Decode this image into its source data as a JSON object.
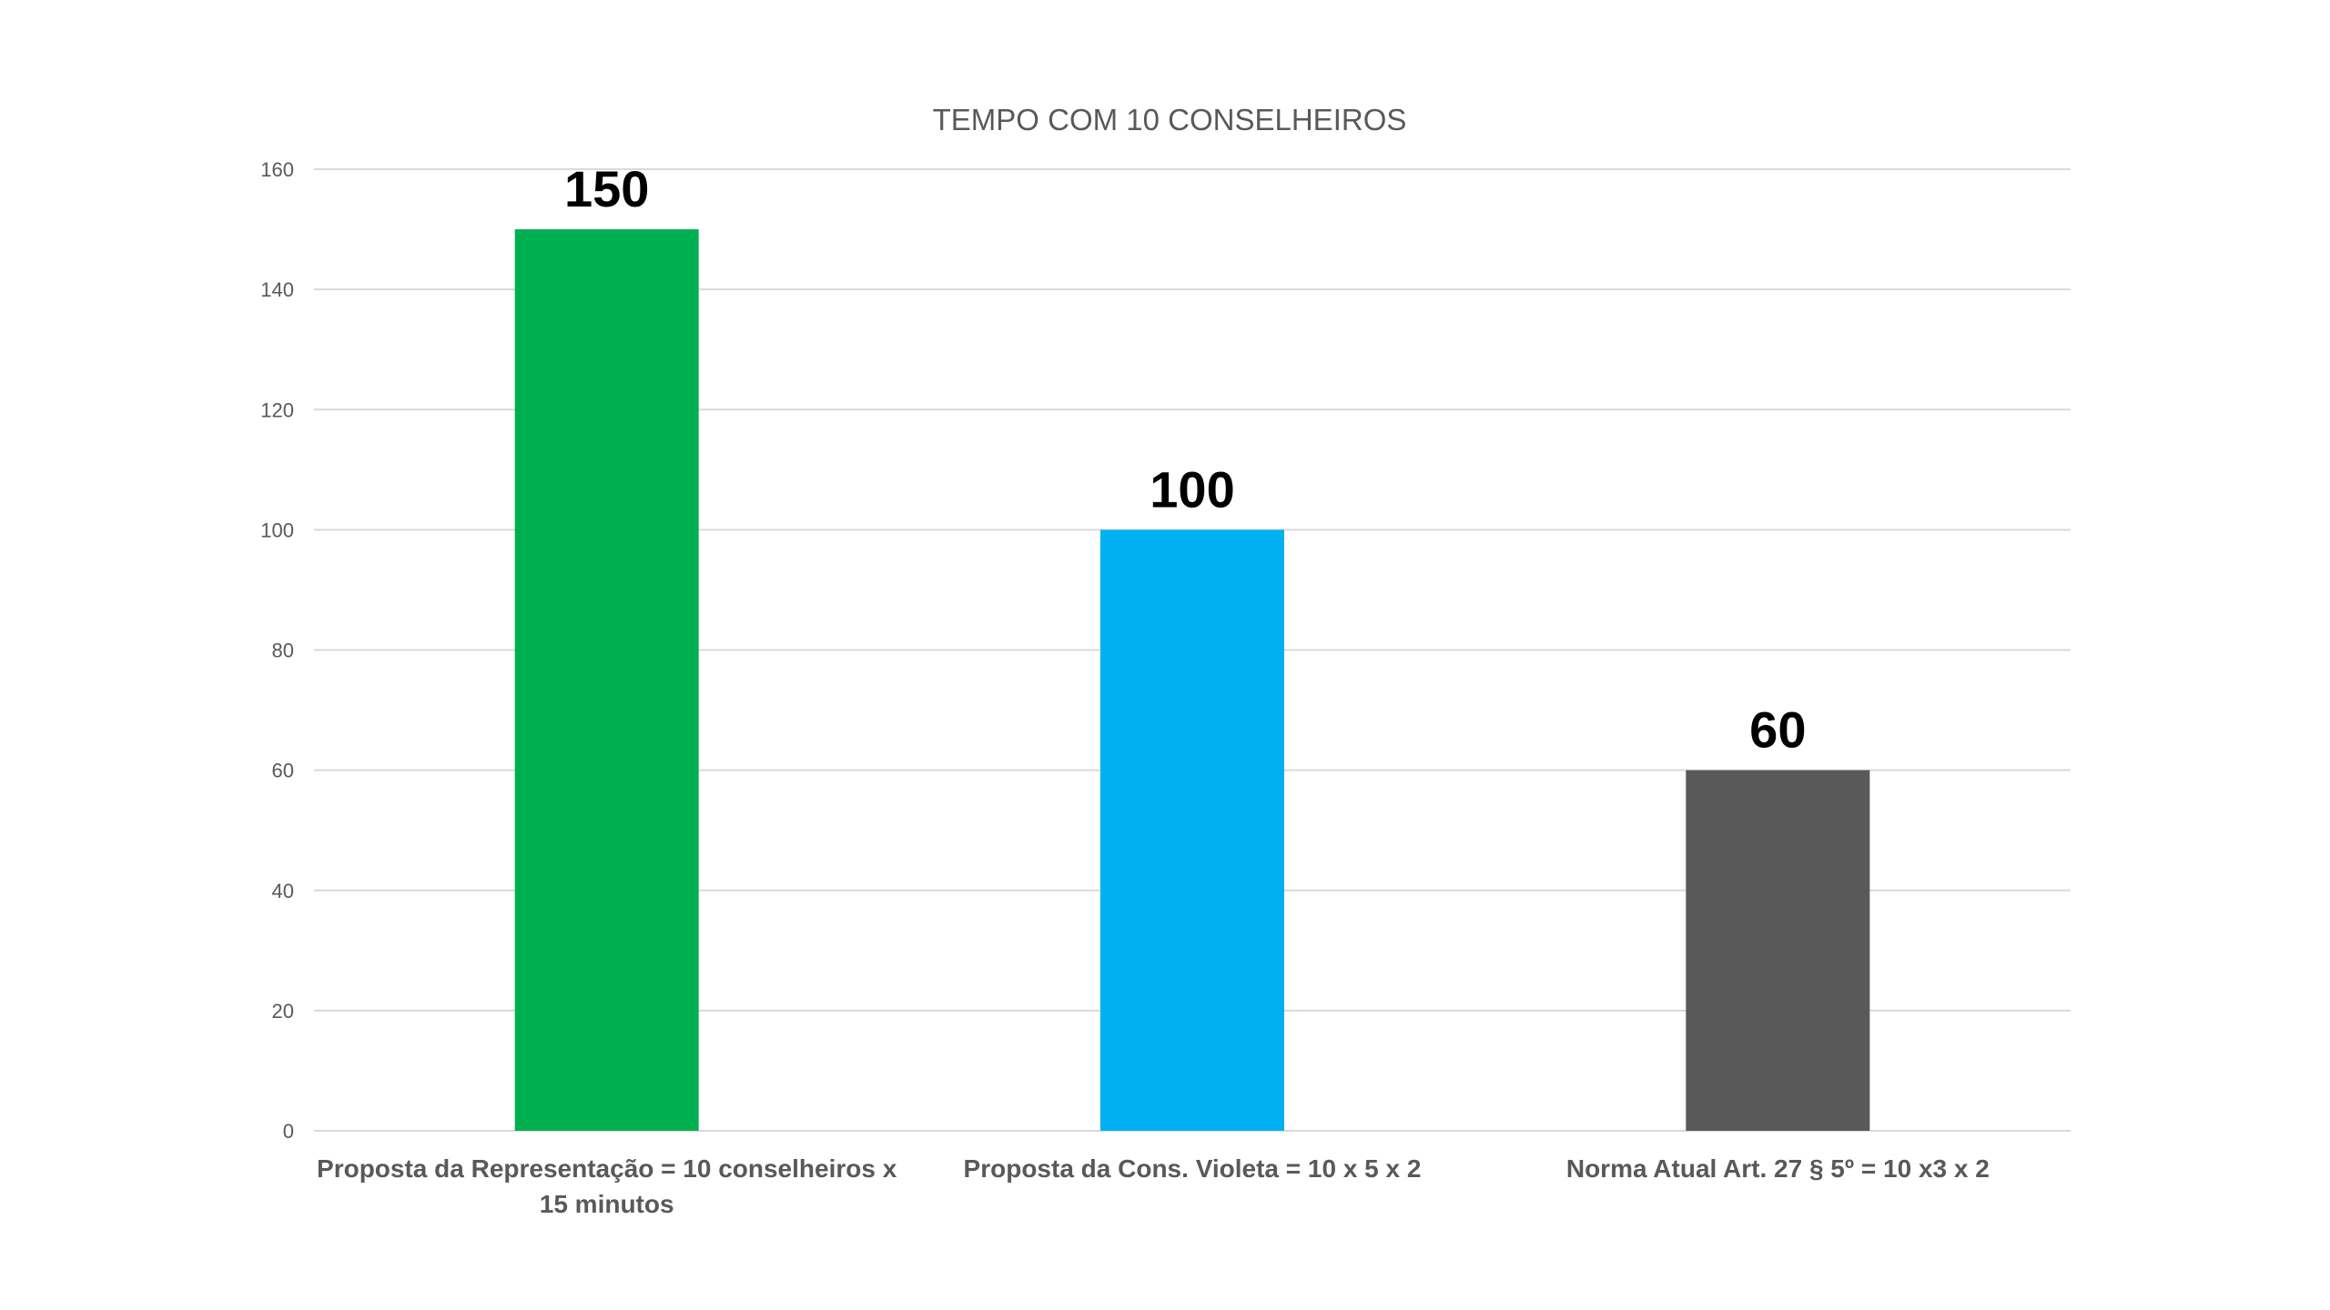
{
  "chart_data": {
    "type": "bar",
    "title": "TEMPO  COM 10 CONSELHEIROS",
    "categories": [
      [
        "Proposta da Representação = 10 conselheiros x",
        "15 minutos"
      ],
      [
        "Proposta da Cons. Violeta = 10 x 5 x 2"
      ],
      [
        "Norma Atual Art. 27 § 5º = 10 x3 x 2"
      ]
    ],
    "values": [
      150,
      100,
      60
    ],
    "data_labels": [
      "150",
      "100",
      "60"
    ],
    "colors": [
      "#00b050",
      "#00b0f0",
      "#595959"
    ],
    "xlabel": "",
    "ylabel": "",
    "ylim": [
      0,
      160
    ],
    "yticks": [
      "0",
      "20",
      "40",
      "60",
      "80",
      "100",
      "120",
      "140",
      "160"
    ],
    "grid": true,
    "legend": "none"
  }
}
